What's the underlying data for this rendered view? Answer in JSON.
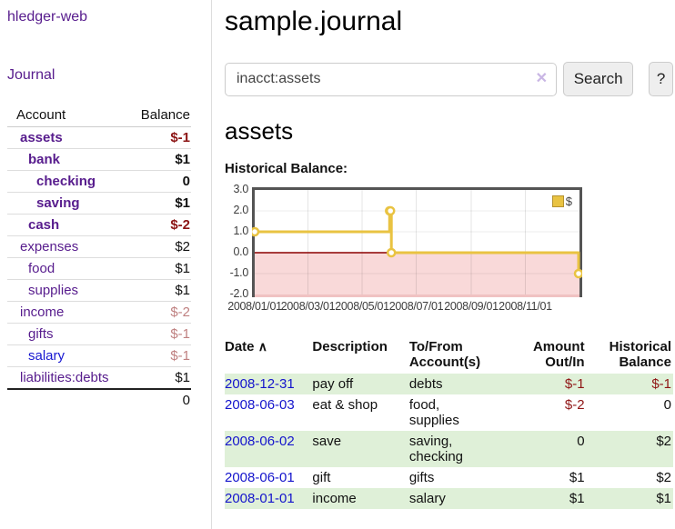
{
  "app": {
    "brand": "hledger-web",
    "nav_journal": "Journal"
  },
  "sidebar": {
    "header": {
      "account": "Account",
      "balance": "Balance"
    },
    "accounts": [
      {
        "name": "assets",
        "balance": "$-1"
      },
      {
        "name": "bank",
        "balance": "$1"
      },
      {
        "name": "checking",
        "balance": "0"
      },
      {
        "name": "saving",
        "balance": "$1"
      },
      {
        "name": "cash",
        "balance": "$-2"
      },
      {
        "name": "expenses",
        "balance": "$2"
      },
      {
        "name": "food",
        "balance": "$1"
      },
      {
        "name": "supplies",
        "balance": "$1"
      },
      {
        "name": "income",
        "balance": "$-2"
      },
      {
        "name": "gifts",
        "balance": "$-1"
      },
      {
        "name": "salary",
        "balance": "$-1"
      },
      {
        "name": "liabilities:debts",
        "balance": "$1"
      }
    ],
    "total": "0"
  },
  "main": {
    "title": "sample.journal",
    "search": {
      "value": "inacct:assets",
      "clear_icon": "✕",
      "button": "Search",
      "help": "?"
    },
    "account_heading": "assets",
    "chart_label": "Historical Balance:"
  },
  "chart_data": {
    "type": "line",
    "title": "Historical Balance:",
    "series": [
      {
        "name": "$",
        "color": "#e9c342",
        "step": true,
        "points": [
          {
            "x": "2008/01/01",
            "y": 1
          },
          {
            "x": "2008/06/01",
            "y": 2
          },
          {
            "x": "2008/06/02",
            "y": 2
          },
          {
            "x": "2008/06/03",
            "y": 0
          },
          {
            "x": "2008/12/31",
            "y": -1
          }
        ]
      }
    ],
    "ylim": [
      -2,
      3
    ],
    "xlim": [
      "2008/01/01",
      "2009/01/01"
    ],
    "ytick_labels": [
      "3.0",
      "2.0",
      "1.0",
      "0.0",
      "-1.0",
      "-2.0"
    ],
    "xtick_labels": [
      "2008/01/01",
      "2008/03/01",
      "2008/05/01",
      "2008/07/01",
      "2008/09/01",
      "2008/11/01"
    ],
    "legend": {
      "label": "$",
      "position": "top-right"
    },
    "grid": true,
    "negative_region_color": "#f9d9d9",
    "zero_line_color": "#8b0000",
    "border_color": "#545454"
  },
  "register": {
    "headers": {
      "date": "Date",
      "sort_icon": "∧",
      "description": "Description",
      "accounts": "To/From Account(s)",
      "amount": "Amount Out/In",
      "balance": "Historical Balance"
    },
    "rows": [
      {
        "date": "2008-12-31",
        "description": "pay off",
        "accounts": "debts",
        "amount": "$-1",
        "balance": "$-1"
      },
      {
        "date": "2008-06-03",
        "description": "eat & shop",
        "accounts": "food, supplies",
        "amount": "$-2",
        "balance": "0"
      },
      {
        "date": "2008-06-02",
        "description": "save",
        "accounts": "saving, checking",
        "amount": "0",
        "balance": "$2"
      },
      {
        "date": "2008-06-01",
        "description": "gift",
        "accounts": "gifts",
        "amount": "$1",
        "balance": "$2"
      },
      {
        "date": "2008-01-01",
        "description": "income",
        "accounts": "salary",
        "amount": "$1",
        "balance": "$1"
      }
    ]
  }
}
